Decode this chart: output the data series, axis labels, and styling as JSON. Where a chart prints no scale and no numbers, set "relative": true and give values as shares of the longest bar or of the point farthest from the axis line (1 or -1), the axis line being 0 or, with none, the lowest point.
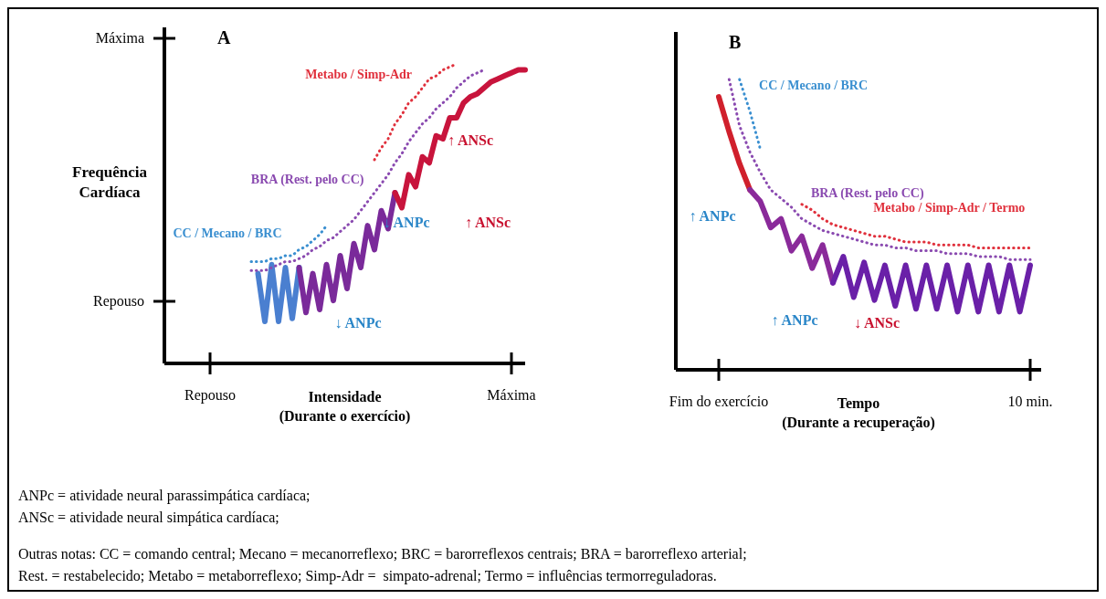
{
  "chart_data": [
    {
      "type": "line",
      "relative": true,
      "title": "A",
      "xlabel": "Intensidade\n(Durante o exercício)",
      "ylabel": "Frequência\nCardíaca",
      "categories": [
        "Repouso",
        null,
        null,
        null,
        null,
        null,
        null,
        null,
        null,
        null,
        null,
        null,
        null,
        null,
        null,
        null,
        null,
        null,
        null,
        null,
        null,
        null,
        null,
        null,
        null,
        null,
        null,
        null,
        null,
        null,
        null,
        null,
        null,
        null,
        null,
        null,
        null,
        null,
        null,
        null,
        null,
        null,
        null,
        null,
        "Máxima",
        null,
        null
      ],
      "series": [
        {
          "color": "#4a7fd0",
          "line_style": "solid",
          "values": [
            null,
            null,
            null,
            null,
            null,
            null,
            null,
            0.3,
            0.14,
            0.33,
            0.14,
            0.32,
            0.15,
            0.32,
            null,
            null,
            null,
            null,
            null,
            null,
            null,
            null,
            null,
            null,
            null,
            null,
            null,
            null,
            null,
            null,
            null,
            null,
            null,
            null,
            null,
            null,
            null,
            null,
            null,
            null,
            null,
            null,
            null,
            null,
            null,
            null,
            null
          ]
        },
        {
          "color": "#7a2a9a",
          "line_style": "solid",
          "values": [
            null,
            null,
            null,
            null,
            null,
            null,
            null,
            null,
            null,
            null,
            null,
            null,
            null,
            0.32,
            0.17,
            0.3,
            0.18,
            0.33,
            0.21,
            0.36,
            0.25,
            0.4,
            0.32,
            0.46,
            0.38,
            0.51,
            0.45,
            0.57,
            null,
            null,
            null,
            null,
            null,
            null,
            null,
            null,
            null,
            null,
            null,
            null,
            null,
            null,
            null,
            null,
            null,
            null,
            null
          ]
        },
        {
          "color": "#c8143c",
          "line_style": "solid",
          "values": [
            null,
            null,
            null,
            null,
            null,
            null,
            null,
            null,
            null,
            null,
            null,
            null,
            null,
            null,
            null,
            null,
            null,
            null,
            null,
            null,
            null,
            null,
            null,
            null,
            null,
            null,
            null,
            0.57,
            0.52,
            0.63,
            0.59,
            0.69,
            0.67,
            0.76,
            0.75,
            0.82,
            0.82,
            0.87,
            0.89,
            0.9,
            0.92,
            0.94,
            0.95,
            0.96,
            0.97,
            0.98,
            0.98
          ]
        },
        {
          "name": "CC / Mecano / BRC",
          "color": "#3a8fd0",
          "line_style": "dotted",
          "values": [
            null,
            null,
            null,
            null,
            null,
            null,
            0.34,
            0.34,
            0.34,
            0.35,
            0.35,
            0.36,
            0.36,
            0.38,
            0.39,
            0.41,
            0.43,
            0.46,
            null,
            null,
            null,
            null,
            null,
            null,
            null,
            null,
            null,
            null,
            null,
            null,
            null,
            null,
            null,
            null,
            null,
            null,
            null,
            null,
            null,
            null,
            null,
            null,
            null,
            null,
            null,
            null,
            null
          ]
        },
        {
          "name": "BRA (Rest. pelo CC)",
          "color": "#8a4ab0",
          "line_style": "dotted",
          "values": [
            null,
            null,
            null,
            null,
            null,
            null,
            0.31,
            0.31,
            0.31,
            0.32,
            0.33,
            0.34,
            0.34,
            0.35,
            0.36,
            0.38,
            0.39,
            0.41,
            0.42,
            0.44,
            0.46,
            0.48,
            0.51,
            0.54,
            0.57,
            0.6,
            0.63,
            0.67,
            0.7,
            0.74,
            0.77,
            0.8,
            0.82,
            0.85,
            0.87,
            0.89,
            0.92,
            0.94,
            0.96,
            0.97,
            0.98,
            null,
            null,
            null,
            null,
            null,
            null
          ]
        },
        {
          "name": "Metabo / Simp-Adr",
          "color": "#e0303c",
          "line_style": "dotted",
          "values": [
            null,
            null,
            null,
            null,
            null,
            null,
            null,
            null,
            null,
            null,
            null,
            null,
            null,
            null,
            null,
            null,
            null,
            null,
            null,
            null,
            null,
            null,
            null,
            null,
            0.68,
            0.72,
            0.75,
            0.8,
            0.83,
            0.87,
            0.89,
            0.92,
            0.95,
            0.96,
            0.98,
            0.99,
            1.0,
            null,
            null,
            null,
            null,
            null,
            null,
            null,
            null,
            null,
            null
          ]
        }
      ],
      "annotations": [
        "Máxima",
        "Repouso",
        "↑ ANSc",
        "↓ ANPc",
        "↑ ANSc",
        "↓ ANPc",
        "ANPc = atividade neural parassimpática cardíaca;",
        "ANSc = atividade neural simpática cardíaca;",
        "Outras notas: CC = comando central; Mecano = mecanorreflexo; BRC = barorreflexos centrais; BRA = barorreflexo arterial;",
        "Rest. = restabelecido; Metabo = metaborreflexo; Simp-Adr =  simpato-adrenal; Termo = influências termorreguladoras."
      ]
    },
    {
      "type": "line",
      "relative": true,
      "title": "B",
      "xlabel": "Tempo\n(Durante a recuperação)",
      "categories": [
        "Fim do exercício",
        null,
        null,
        null,
        null,
        null,
        null,
        null,
        null,
        null,
        null,
        null,
        null,
        null,
        null,
        null,
        null,
        null,
        null,
        null,
        null,
        null,
        null,
        null,
        null,
        null,
        null,
        null,
        null,
        null,
        "10 min."
      ],
      "series": [
        {
          "color": "#d0202c",
          "line_style": "solid",
          "values": [
            0.94,
            0.82,
            0.71,
            0.62,
            null,
            null,
            null,
            null,
            null,
            null,
            null,
            null,
            null,
            null,
            null,
            null,
            null,
            null,
            null,
            null,
            null,
            null,
            null,
            null,
            null,
            null,
            null,
            null,
            null,
            null,
            null
          ]
        },
        {
          "color": "#8a2a9a",
          "line_style": "solid",
          "values": [
            null,
            null,
            null,
            0.62,
            0.58,
            0.49,
            0.52,
            0.41,
            0.46,
            0.35,
            0.43,
            0.3,
            null,
            null,
            null,
            null,
            null,
            null,
            null,
            null,
            null,
            null,
            null,
            null,
            null,
            null,
            null,
            null,
            null,
            null,
            null
          ]
        },
        {
          "color": "#6a20a8",
          "line_style": "solid",
          "values": [
            null,
            null,
            null,
            null,
            null,
            null,
            null,
            null,
            null,
            null,
            null,
            0.3,
            0.39,
            0.25,
            0.37,
            0.24,
            0.36,
            0.22,
            0.36,
            0.21,
            0.36,
            0.21,
            0.36,
            0.2,
            0.36,
            0.2,
            0.36,
            0.2,
            0.36,
            0.2,
            0.36
          ]
        },
        {
          "name": "CC / Mecano / BRC",
          "color": "#3a8fd0",
          "line_style": "dotted",
          "values": [
            null,
            null,
            1.0,
            0.89,
            0.76,
            null,
            null,
            null,
            null,
            null,
            null,
            null,
            null,
            null,
            null,
            null,
            null,
            null,
            null,
            null,
            null,
            null,
            null,
            null,
            null,
            null,
            null,
            null,
            null,
            null,
            null
          ]
        },
        {
          "name": "BRA (Rest. pelo CC)",
          "color": "#8a4ab0",
          "line_style": "dotted",
          "values": [
            null,
            1.0,
            0.84,
            0.75,
            0.68,
            0.62,
            0.59,
            0.56,
            0.52,
            0.5,
            0.48,
            0.47,
            0.46,
            0.45,
            0.44,
            0.43,
            0.43,
            0.42,
            0.42,
            0.41,
            0.41,
            0.41,
            0.4,
            0.4,
            0.4,
            0.39,
            0.39,
            0.39,
            0.38,
            0.38,
            0.38
          ]
        },
        {
          "name": "Metabo / Simp-Adr / Termo",
          "color": "#e0303c",
          "line_style": "dotted",
          "values": [
            null,
            null,
            null,
            null,
            null,
            null,
            null,
            null,
            0.57,
            0.55,
            0.52,
            0.5,
            0.49,
            0.48,
            0.47,
            0.46,
            0.46,
            0.45,
            0.44,
            0.44,
            0.44,
            0.43,
            0.43,
            0.43,
            0.43,
            0.42,
            0.42,
            0.42,
            0.42,
            0.42,
            0.42
          ]
        }
      ],
      "annotations": [
        "↑ ANPc",
        "↑ ANPc",
        "↓ ANSc"
      ]
    }
  ]
}
